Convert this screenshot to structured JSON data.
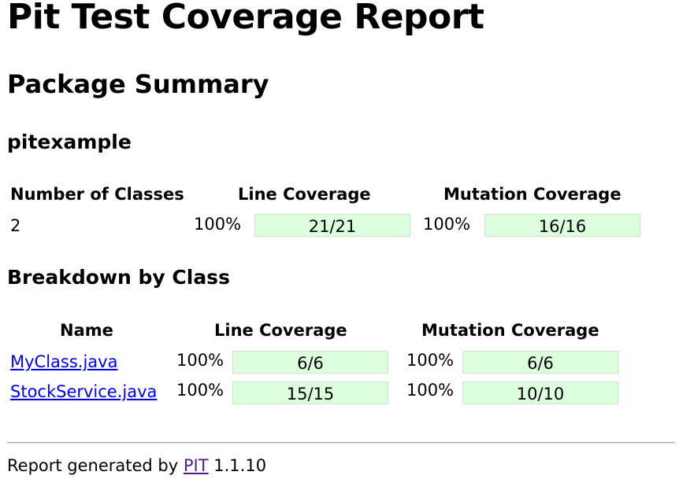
{
  "title": "Pit Test Coverage Report",
  "package_summary": {
    "heading": "Package Summary",
    "package_name": "pitexample",
    "headers": {
      "classes": "Number of Classes",
      "line": "Line Coverage",
      "mutation": "Mutation Coverage"
    },
    "row": {
      "classes": "2",
      "line_pct": "100%",
      "line_ratio": "21/21",
      "mutation_pct": "100%",
      "mutation_ratio": "16/16"
    }
  },
  "breakdown": {
    "heading": "Breakdown by Class",
    "headers": {
      "name": "Name",
      "line": "Line Coverage",
      "mutation": "Mutation Coverage"
    },
    "rows": [
      {
        "name": "MyClass.java",
        "line_pct": "100%",
        "line_ratio": "6/6",
        "mutation_pct": "100%",
        "mutation_ratio": "6/6"
      },
      {
        "name": "StockService.java",
        "line_pct": "100%",
        "line_ratio": "15/15",
        "mutation_pct": "100%",
        "mutation_ratio": "10/10"
      }
    ]
  },
  "footer": {
    "prefix": "Report generated by",
    "link": "PIT",
    "version": "1.1.10"
  },
  "colors": {
    "coverage_bar": "#ddffdd",
    "link": "#0000ee",
    "visited_link": "#551a8b"
  }
}
